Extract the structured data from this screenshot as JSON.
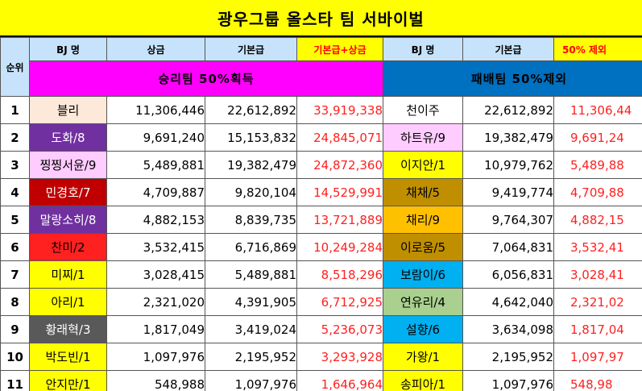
{
  "title": "광우그룹 올스타 팀 서바이벌",
  "headers": {
    "rank": "순위",
    "win_bj": "BJ 명",
    "win_prize": "상금",
    "win_base": "기본급",
    "win_total": "기본급+상금",
    "lose_bj": "BJ 명",
    "lose_base": "기본급",
    "lose_deduct": "50% 제외"
  },
  "bands": {
    "win": "승리팀 50%획득",
    "lose": "패배팀 50%제외"
  },
  "colors": {
    "title_bg": "#ffff00",
    "header_bg": "#c7e3fb",
    "win_band": "#ff00ff",
    "lose_band": "#0070c0",
    "highlight_text": "#ff0000"
  },
  "rows": [
    {
      "rank": "1",
      "win_name": "블리",
      "win_color": "#fde9d9",
      "win_text": "#000000",
      "prize": "11,306,446",
      "base": "22,612,892",
      "total": "33,919,338",
      "lose_name": "천이주",
      "lose_color": "#ffffff",
      "lose_text": "#000000",
      "lose_base": "22,612,892",
      "deduct": "11,306,44"
    },
    {
      "rank": "2",
      "win_name": "도화/8",
      "win_color": "#7030a0",
      "win_text": "#ffffff",
      "prize": "9,691,240",
      "base": "15,153,832",
      "total": "24,845,071",
      "lose_name": "하트유/9",
      "lose_color": "#ffccff",
      "lose_text": "#000000",
      "lose_base": "19,382,479",
      "deduct": "9,691,24"
    },
    {
      "rank": "3",
      "win_name": "찡찡서윤/9",
      "win_color": "#ffccff",
      "win_text": "#000000",
      "prize": "5,489,881",
      "base": "19,382,479",
      "total": "24,872,360",
      "lose_name": "이지안/1",
      "lose_color": "#ffff00",
      "lose_text": "#000000",
      "lose_base": "10,979,762",
      "deduct": "5,489,88"
    },
    {
      "rank": "4",
      "win_name": "민경호/7",
      "win_color": "#c00000",
      "win_text": "#ffffff",
      "prize": "4,709,887",
      "base": "9,820,104",
      "total": "14,529,991",
      "lose_name": "채채/5",
      "lose_color": "#bf8f00",
      "lose_text": "#000000",
      "lose_base": "9,419,774",
      "deduct": "4,709,88"
    },
    {
      "rank": "5",
      "win_name": "말랑소히/8",
      "win_color": "#7030a0",
      "win_text": "#ffffff",
      "prize": "4,882,153",
      "base": "8,839,735",
      "total": "13,721,889",
      "lose_name": "채리/9",
      "lose_color": "#ffc000",
      "lose_text": "#000000",
      "lose_base": "9,764,307",
      "deduct": "4,882,15"
    },
    {
      "rank": "6",
      "win_name": "찬미/2",
      "win_color": "#ff2020",
      "win_text": "#000000",
      "prize": "3,532,415",
      "base": "6,716,869",
      "total": "10,249,284",
      "lose_name": "이로움/5",
      "lose_color": "#bf8f00",
      "lose_text": "#000000",
      "lose_base": "7,064,831",
      "deduct": "3,532,41"
    },
    {
      "rank": "7",
      "win_name": "미찌/1",
      "win_color": "#ffff00",
      "win_text": "#000000",
      "prize": "3,028,415",
      "base": "5,489,881",
      "total": "8,518,296",
      "lose_name": "보람이/6",
      "lose_color": "#00b0f0",
      "lose_text": "#000000",
      "lose_base": "6,056,831",
      "deduct": "3,028,41"
    },
    {
      "rank": "8",
      "win_name": "아리/1",
      "win_color": "#ffff00",
      "win_text": "#000000",
      "prize": "2,321,020",
      "base": "4,391,905",
      "total": "6,712,925",
      "lose_name": "연유리/4",
      "lose_color": "#a9d08e",
      "lose_text": "#000000",
      "lose_base": "4,642,040",
      "deduct": "2,321,02"
    },
    {
      "rank": "9",
      "win_name": "황래혁/3",
      "win_color": "#595959",
      "win_text": "#ffffff",
      "prize": "1,817,049",
      "base": "3,419,024",
      "total": "5,236,073",
      "lose_name": "설향/6",
      "lose_color": "#00b0f0",
      "lose_text": "#000000",
      "lose_base": "3,634,098",
      "deduct": "1,817,04"
    },
    {
      "rank": "10",
      "win_name": "박도빈/1",
      "win_color": "#ffff00",
      "win_text": "#000000",
      "prize": "1,097,976",
      "base": "2,195,952",
      "total": "3,293,928",
      "lose_name": "가왕/1",
      "lose_color": "#ffff00",
      "lose_text": "#000000",
      "lose_base": "2,195,952",
      "deduct": "1,097,97"
    },
    {
      "rank": "11",
      "win_name": "안지만/1",
      "win_color": "#ffff00",
      "win_text": "#000000",
      "prize": "548,988",
      "base": "1,097,976",
      "total": "1,646,964",
      "lose_name": "송피아/1",
      "lose_color": "#ffff00",
      "lose_text": "#000000",
      "lose_base": "1,097,976",
      "deduct": "548,98"
    }
  ]
}
